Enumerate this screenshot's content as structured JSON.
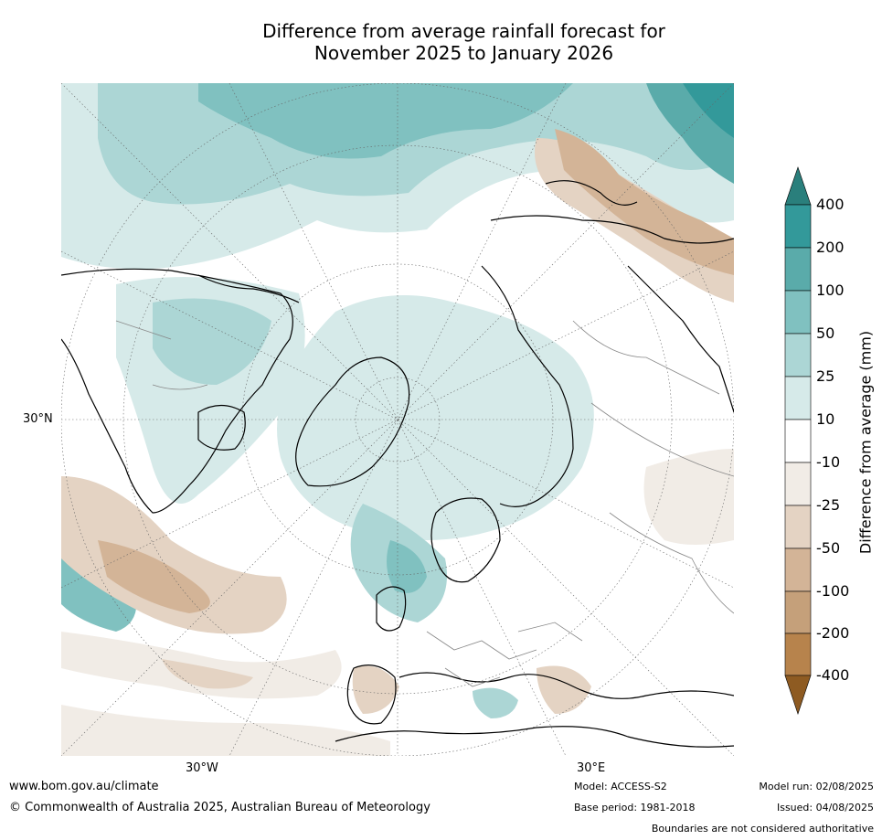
{
  "title": {
    "line1": "Difference from average rainfall forecast for",
    "line2": "November 2025 to January 2026"
  },
  "map": {
    "projection": "north polar stereographic",
    "labels": {
      "lat_30n": "30°N",
      "lon_30w": "30°W",
      "lon_30e": "30°E"
    },
    "fill_colors": {
      "wet_400": "#2a7f7c",
      "wet_200": "#33999a",
      "wet_100": "#5aabaa",
      "wet_50": "#80c1c0",
      "wet_25": "#acd6d5",
      "wet_10": "#d6eae9",
      "neutral": "#ffffff",
      "dry_10": "#f1ece6",
      "dry_25": "#e4d3c3",
      "dry_50": "#d3b497",
      "dry_100": "#c5a07a",
      "dry_200": "#b7834c",
      "dry_400": "#a77237",
      "dry_extreme": "#8e5b22"
    }
  },
  "colorbar": {
    "label": "Difference from average (mm)",
    "ticks": [
      "400",
      "200",
      "100",
      "50",
      "25",
      "10",
      "-10",
      "-25",
      "-50",
      "-100",
      "-200",
      "-400"
    ]
  },
  "footer": {
    "website": "www.bom.gov.au/climate",
    "copyright": "© Commonwealth of Australia 2025, Australian Bureau of Meteorology",
    "model": "Model: ACCESS-S2",
    "base_period": "Base period: 1981-2018",
    "model_run": "Model run: 02/08/2025",
    "issued": "Issued: 04/08/2025",
    "boundaries_note": "Boundaries are not considered authoritative"
  }
}
